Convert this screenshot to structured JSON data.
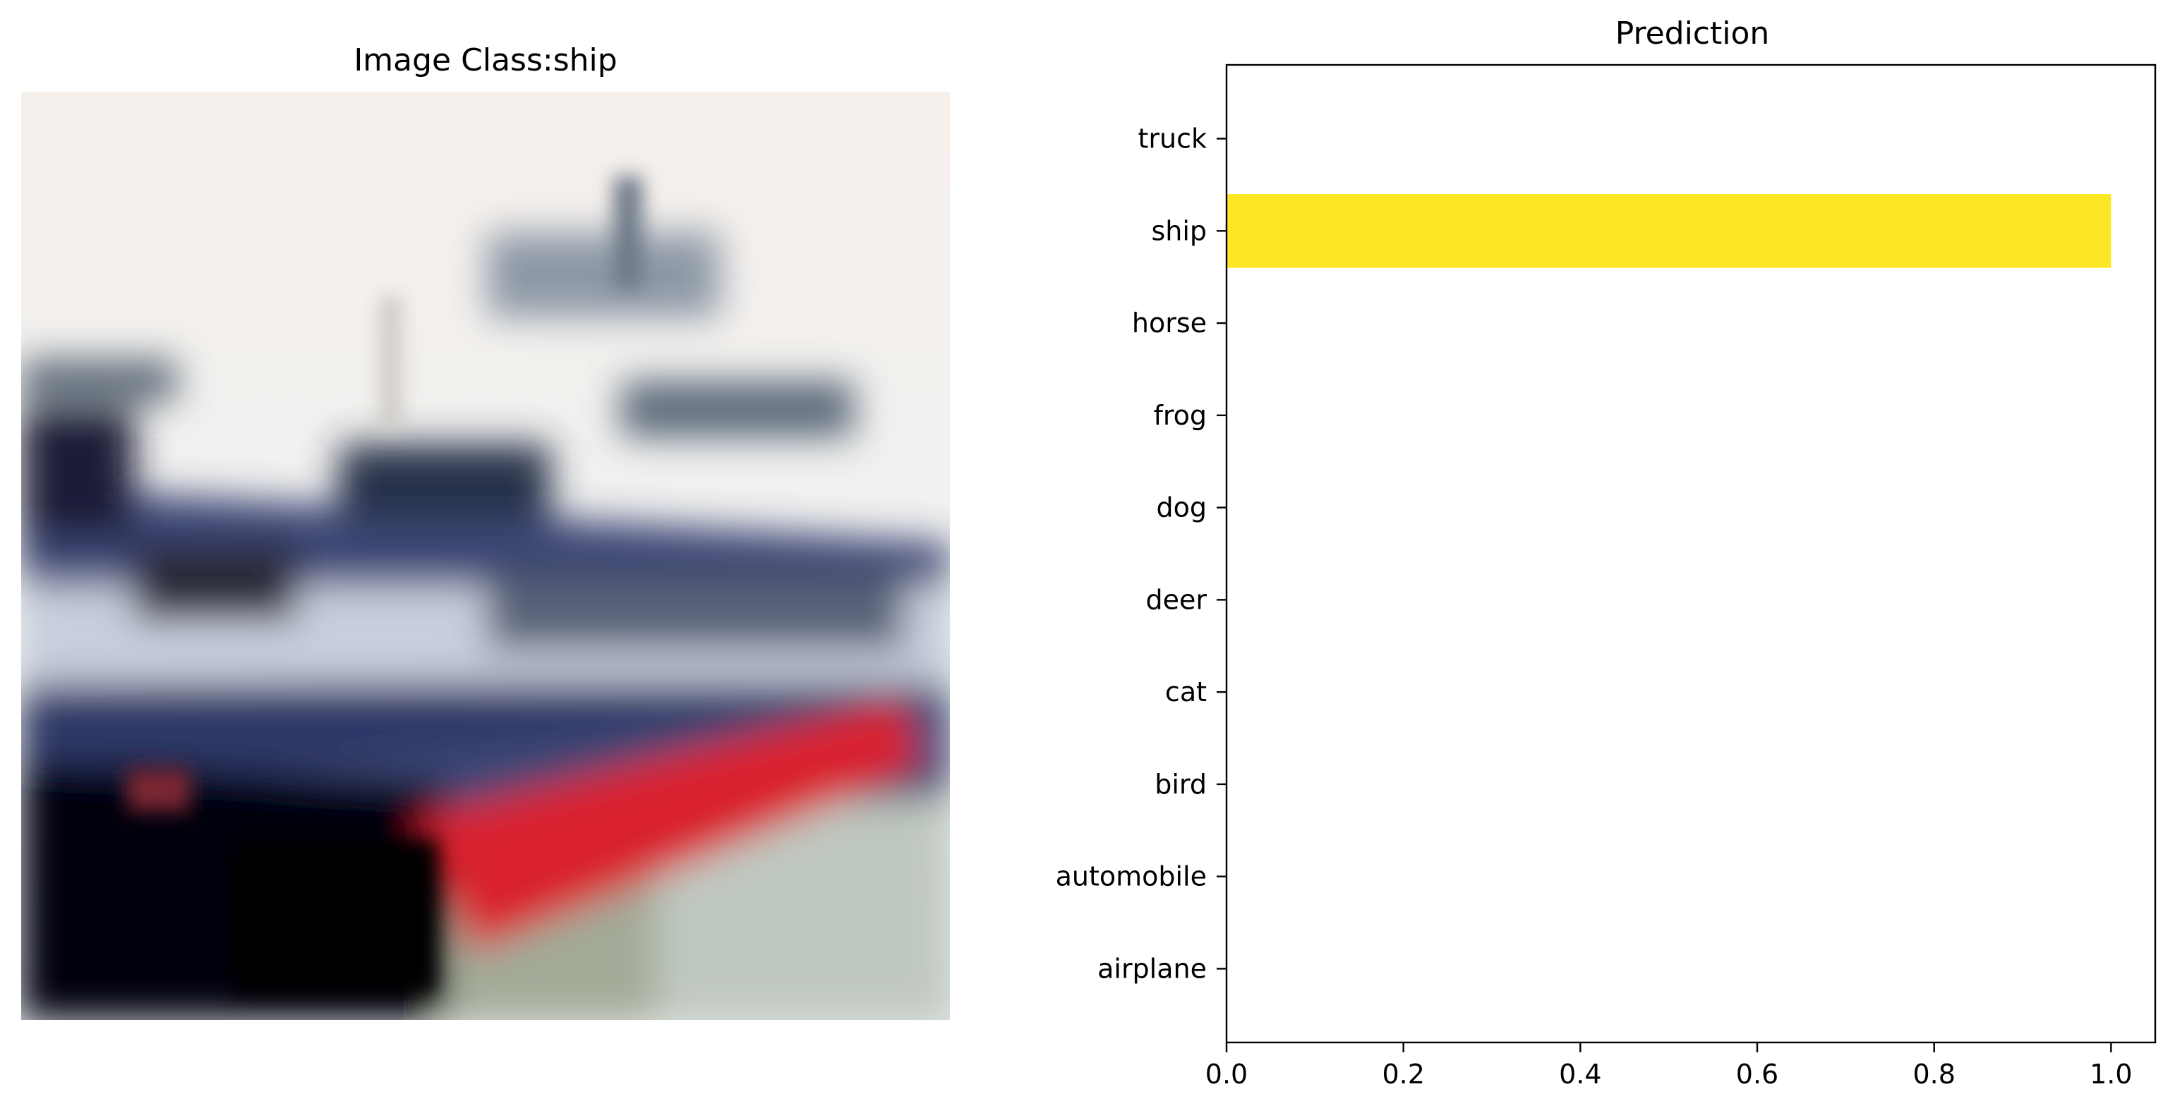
{
  "left_panel": {
    "title": "Image Class:ship",
    "image_subject": "ship"
  },
  "chart_data": {
    "type": "bar",
    "orientation": "horizontal",
    "title": "Prediction",
    "xlabel": "",
    "ylabel": "",
    "categories": [
      "airplane",
      "automobile",
      "bird",
      "cat",
      "deer",
      "dog",
      "frog",
      "horse",
      "ship",
      "truck"
    ],
    "values": [
      0,
      0,
      0,
      0,
      0,
      0,
      0,
      0,
      1.0,
      0
    ],
    "xlim": [
      0,
      1.05
    ],
    "xticks": [
      "0.0",
      "0.2",
      "0.4",
      "0.6",
      "0.8",
      "1.0"
    ],
    "xtick_values": [
      0,
      0.2,
      0.4,
      0.6,
      0.8,
      1.0
    ],
    "bar_color": "#fde725",
    "grid": false,
    "legend": "none"
  }
}
